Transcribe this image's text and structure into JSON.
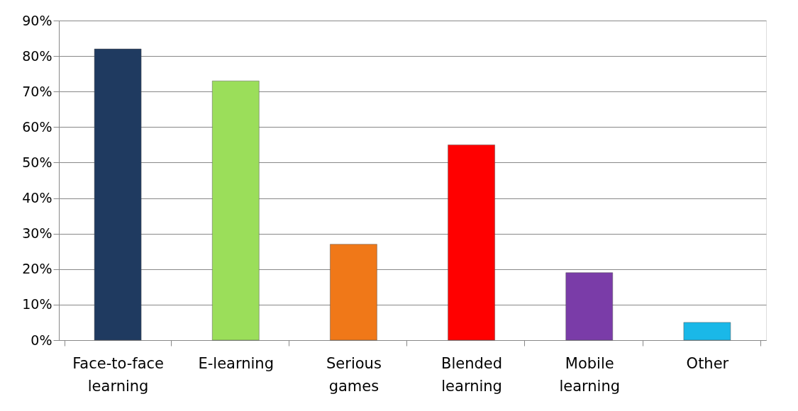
{
  "chart_data": {
    "type": "bar",
    "categories": [
      "Face-to-face learning",
      "E-learning",
      "Serious games",
      "Blended learning",
      "Mobile learning",
      "Other"
    ],
    "values": [
      82,
      73,
      27,
      55,
      19,
      5
    ],
    "colors": [
      "#1f3a60",
      "#9bde5a",
      "#f07818",
      "#ff0000",
      "#7a3ca8",
      "#1ab8e8"
    ],
    "ylim": [
      0,
      90
    ],
    "yticks": [
      {
        "value": 0,
        "label": "0%"
      },
      {
        "value": 10,
        "label": "10%"
      },
      {
        "value": 20,
        "label": "20%"
      },
      {
        "value": 30,
        "label": "30%"
      },
      {
        "value": 40,
        "label": "40%"
      },
      {
        "value": 50,
        "label": "50%"
      },
      {
        "value": 60,
        "label": "60%"
      },
      {
        "value": 70,
        "label": "70%"
      },
      {
        "value": 80,
        "label": "80%"
      },
      {
        "value": 90,
        "label": "90%"
      }
    ],
    "grid": "y"
  }
}
